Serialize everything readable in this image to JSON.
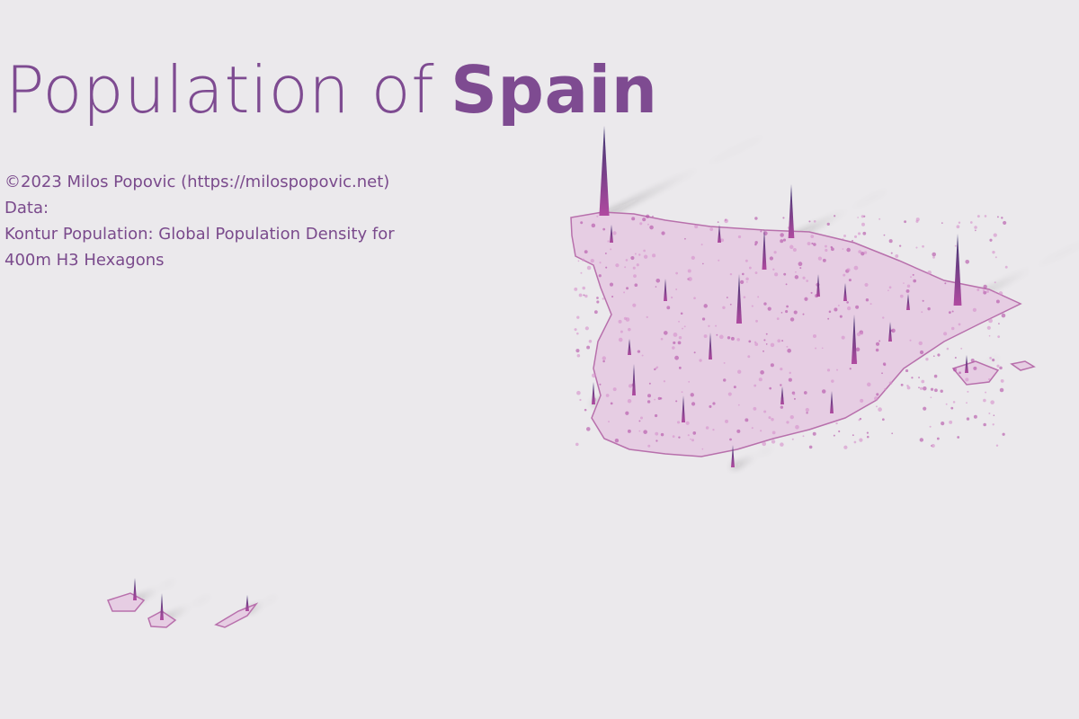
{
  "header": {
    "title_regular": "Population of",
    "title_bold": "Spain"
  },
  "credits": {
    "lines": [
      "©2023 Milos Popovic (https://milospopovic.net)",
      "Data:",
      "Kontur Population: Global Population Density for",
      "400m H3 Hexagons"
    ]
  }
}
